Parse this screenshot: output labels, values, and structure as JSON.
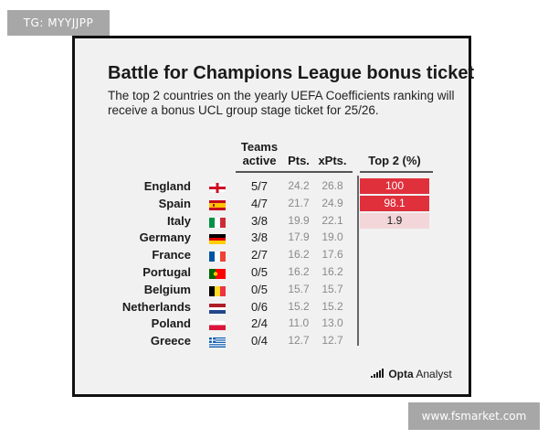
{
  "watermark_top": "TG: MYYJJPP",
  "watermark_bottom": "www.fsmarket.com",
  "card": {
    "title": "Battle for Champions League bonus ticket",
    "subtitle": "The top 2 countries on the yearly UEFA Coefficients ranking will receive a bonus UCL group stage ticket for 25/26.",
    "headers": {
      "teams_line1": "Teams",
      "teams_line2": "active",
      "pts": "Pts.",
      "xpts": "xPts.",
      "top2": "Top 2 (%)"
    },
    "rows": [
      {
        "country": "England",
        "flag": "england-flag-icon",
        "teams": "5/7",
        "pts": "24.2",
        "xpts": "26.8",
        "top2": "100",
        "top2_pct": 100
      },
      {
        "country": "Spain",
        "flag": "spain-flag-icon",
        "teams": "4/7",
        "pts": "21.7",
        "xpts": "24.9",
        "top2": "98.1",
        "top2_pct": 98.1
      },
      {
        "country": "Italy",
        "flag": "italy-flag-icon",
        "teams": "3/8",
        "pts": "19.9",
        "xpts": "22.1",
        "top2": "1.9",
        "top2_pct": 1.9
      },
      {
        "country": "Germany",
        "flag": "germany-flag-icon",
        "teams": "3/8",
        "pts": "17.9",
        "xpts": "19.0",
        "top2": "",
        "top2_pct": 0
      },
      {
        "country": "France",
        "flag": "france-flag-icon",
        "teams": "2/7",
        "pts": "16.2",
        "xpts": "17.6",
        "top2": "",
        "top2_pct": 0
      },
      {
        "country": "Portugal",
        "flag": "portugal-flag-icon",
        "teams": "0/5",
        "pts": "16.2",
        "xpts": "16.2",
        "top2": "",
        "top2_pct": 0
      },
      {
        "country": "Belgium",
        "flag": "belgium-flag-icon",
        "teams": "0/5",
        "pts": "15.7",
        "xpts": "15.7",
        "top2": "",
        "top2_pct": 0
      },
      {
        "country": "Netherlands",
        "flag": "netherlands-flag-icon",
        "teams": "0/6",
        "pts": "15.2",
        "xpts": "15.2",
        "top2": "",
        "top2_pct": 0
      },
      {
        "country": "Poland",
        "flag": "poland-flag-icon",
        "teams": "2/4",
        "pts": "11.0",
        "xpts": "13.0",
        "top2": "",
        "top2_pct": 0
      },
      {
        "country": "Greece",
        "flag": "greece-flag-icon",
        "teams": "0/4",
        "pts": "12.7",
        "xpts": "12.7",
        "top2": "",
        "top2_pct": 0
      }
    ],
    "logo": {
      "brand": "Opta",
      "suffix": "Analyst"
    }
  },
  "colors": {
    "top2_high": "#e0303c",
    "top2_low": "#f3d6d9",
    "text": "#1a1a1a",
    "muted": "#8a8a8a"
  }
}
